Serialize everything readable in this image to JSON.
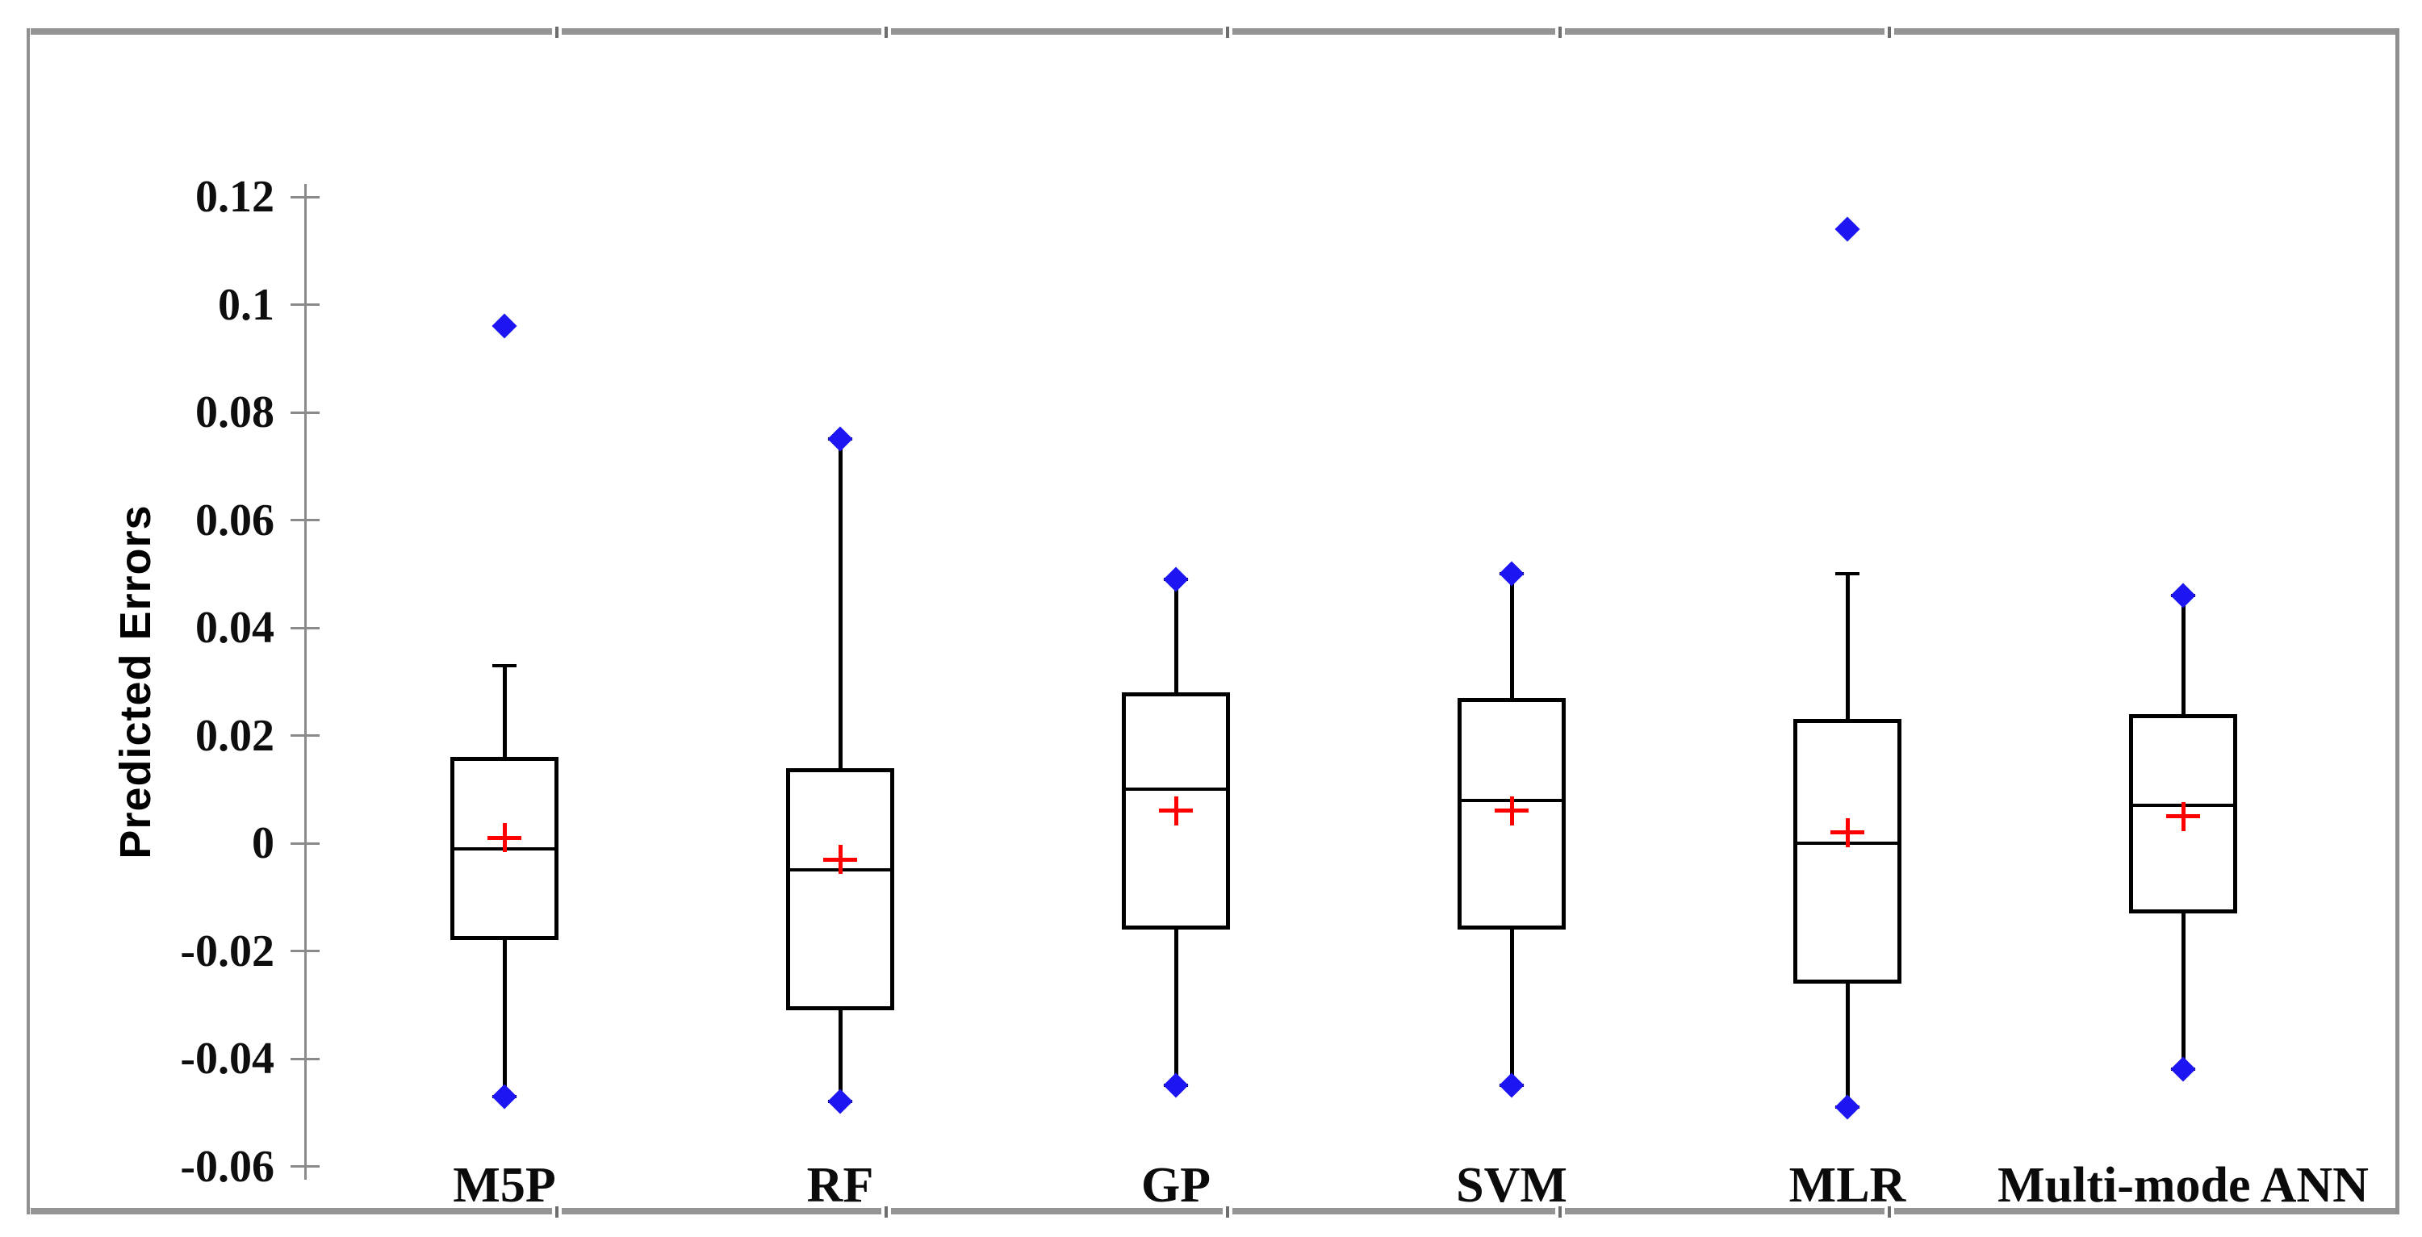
{
  "figure": {
    "background": "#ffffff",
    "frame_color": "#909090"
  },
  "chart_data": {
    "type": "boxplot",
    "title": "",
    "xlabel": "",
    "ylabel": "Predicted Errors",
    "ylim": [
      -0.06,
      0.12
    ],
    "grid": false,
    "legend": "none",
    "yticks": [
      {
        "label": "0.12",
        "value": 0.12
      },
      {
        "label": "0.1",
        "value": 0.1
      },
      {
        "label": "0.08",
        "value": 0.08
      },
      {
        "label": "0.06",
        "value": 0.06
      },
      {
        "label": "0.04",
        "value": 0.04
      },
      {
        "label": "0.02",
        "value": 0.02
      },
      {
        "label": "0",
        "value": 0.0
      },
      {
        "label": "-0.02",
        "value": -0.02
      },
      {
        "label": "-0.04",
        "value": -0.04
      },
      {
        "label": "-0.06",
        "value": -0.06
      }
    ],
    "categories": [
      "M5P",
      "RF",
      "GP",
      "SVM",
      "MLR",
      "Multi-mode ANN"
    ],
    "series": [
      {
        "category": "M5P",
        "whisker_low": -0.047,
        "q1": -0.018,
        "median": -0.001,
        "mean": 0.001,
        "q3": 0.016,
        "whisker_high": 0.033,
        "outliers": [
          0.096
        ],
        "min_marker": true,
        "max_marker": false
      },
      {
        "category": "RF",
        "whisker_low": -0.048,
        "q1": -0.031,
        "median": -0.005,
        "mean": -0.003,
        "q3": 0.014,
        "whisker_high": 0.075,
        "outliers": [],
        "min_marker": true,
        "max_marker": true
      },
      {
        "category": "GP",
        "whisker_low": -0.045,
        "q1": -0.016,
        "median": 0.01,
        "mean": 0.006,
        "q3": 0.028,
        "whisker_high": 0.049,
        "outliers": [],
        "min_marker": true,
        "max_marker": true
      },
      {
        "category": "SVM",
        "whisker_low": -0.045,
        "q1": -0.016,
        "median": 0.008,
        "mean": 0.006,
        "q3": 0.027,
        "whisker_high": 0.05,
        "outliers": [],
        "min_marker": true,
        "max_marker": true
      },
      {
        "category": "MLR",
        "whisker_low": -0.049,
        "q1": -0.026,
        "median": 0.0,
        "mean": 0.002,
        "q3": 0.023,
        "whisker_high": 0.05,
        "outliers": [
          0.114
        ],
        "min_marker": true,
        "max_marker": false
      },
      {
        "category": "Multi-mode ANN",
        "whisker_low": -0.042,
        "q1": -0.013,
        "median": 0.007,
        "mean": 0.005,
        "q3": 0.024,
        "whisker_high": 0.046,
        "outliers": [],
        "min_marker": true,
        "max_marker": true
      }
    ],
    "colors": {
      "box_stroke": "#000000",
      "whisker": "#000000",
      "median": "#000000",
      "mean_marker": "#ff0000",
      "extreme_marker": "#1e16f2",
      "outlier_marker": "#1e16f2",
      "axis": "#8a8a8a",
      "tick_label": "#0e0e0e",
      "category_label": "#0b0b0b",
      "background": "#ffffff"
    }
  }
}
